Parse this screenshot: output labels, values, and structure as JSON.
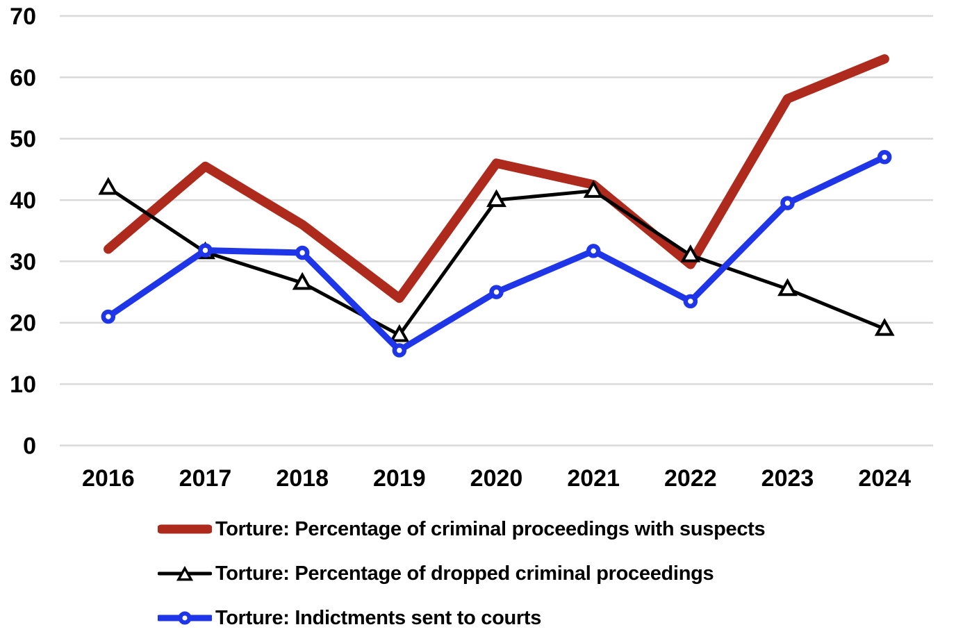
{
  "chart_data": {
    "type": "line",
    "title": "",
    "xlabel": "",
    "ylabel": "",
    "categories": [
      "2016",
      "2017",
      "2018",
      "2019",
      "2020",
      "2021",
      "2022",
      "2023",
      "2024"
    ],
    "series": [
      {
        "name": "Torture: Percentage of criminal proceedings with suspects",
        "color": "#AE2A1C",
        "stroke_width": 13.5,
        "marker": "none",
        "values": [
          32,
          45.5,
          36,
          24,
          46,
          42.5,
          29.5,
          56.5,
          63
        ]
      },
      {
        "name": "Torture: Percentage of dropped criminal proceedings",
        "color": "#000000",
        "stroke_width": 5,
        "marker": "triangle",
        "marker_fill": "#ffffff",
        "values": [
          42,
          31.5,
          26.5,
          18,
          40,
          41.5,
          31,
          25.5,
          19
        ]
      },
      {
        "name": "Torture: Indictments sent to courts",
        "color": "#1F35E8",
        "stroke_width": 9,
        "marker": "circle",
        "marker_fill": "#ffffff",
        "values": [
          21,
          31.8,
          31.4,
          15.5,
          25,
          31.7,
          23.5,
          39.5,
          47
        ]
      }
    ],
    "ylim": [
      0,
      70
    ],
    "y_ticks": [
      0,
      10,
      20,
      30,
      40,
      50,
      60,
      70
    ],
    "grid": "horizontal",
    "gridline_color": "#D9D9D9",
    "tick_label_color": "#000000",
    "legend_position": "bottom-left"
  }
}
